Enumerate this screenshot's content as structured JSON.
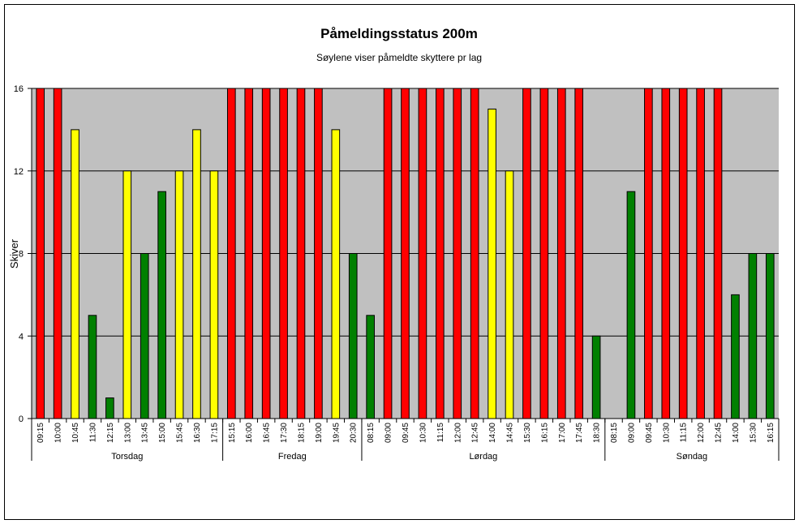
{
  "chart_data": {
    "type": "bar",
    "title": "Påmeldingsstatus 200m",
    "subtitle": "Søylene viser påmeldte skyttere pr lag",
    "ylabel": "Skiver",
    "xlabel": "",
    "ylim": [
      0,
      16
    ],
    "yticks": [
      0,
      4,
      8,
      12,
      16
    ],
    "grid": true,
    "legend": "none",
    "colors": {
      "red": "#ff0000",
      "yellow": "#ffff00",
      "green": "#008000",
      "plot_background": "#c0c0c0"
    },
    "groups": [
      {
        "day": "Torsdag",
        "categories": [
          "09:15",
          "10:00",
          "10:45",
          "11:30",
          "12:15",
          "13:00",
          "13:45",
          "15:00",
          "15:45",
          "16:30",
          "17:15"
        ],
        "values": [
          16,
          16,
          14,
          5,
          1,
          12,
          8,
          11,
          12,
          14,
          12
        ],
        "colors": [
          "red",
          "red",
          "yellow",
          "green",
          "green",
          "yellow",
          "green",
          "green",
          "yellow",
          "yellow",
          "yellow"
        ]
      },
      {
        "day": "Fredag",
        "categories": [
          "15:15",
          "16:00",
          "16:45",
          "17:30",
          "18:15",
          "19:00",
          "19:45",
          "20:30"
        ],
        "values": [
          16,
          16,
          16,
          16,
          16,
          16,
          14,
          8
        ],
        "colors": [
          "red",
          "red",
          "red",
          "red",
          "red",
          "red",
          "yellow",
          "green"
        ]
      },
      {
        "day": "Lørdag",
        "categories": [
          "08:15",
          "09:00",
          "09:45",
          "10:30",
          "11:15",
          "12:00",
          "12:45",
          "14:00",
          "14:45",
          "15:30",
          "16:15",
          "17:00",
          "17:45",
          "18:30"
        ],
        "values": [
          5,
          16,
          16,
          16,
          16,
          16,
          16,
          15,
          12,
          16,
          16,
          16,
          16,
          4
        ],
        "colors": [
          "green",
          "red",
          "red",
          "red",
          "red",
          "red",
          "red",
          "yellow",
          "yellow",
          "red",
          "red",
          "red",
          "red",
          "green"
        ]
      },
      {
        "day": "Søndag",
        "categories": [
          "08:15",
          "09:00",
          "09:45",
          "10:30",
          "11:15",
          "12:00",
          "12:45",
          "14:00",
          "15:30",
          "16:15"
        ],
        "values": [
          0,
          11,
          16,
          16,
          16,
          16,
          16,
          6,
          8,
          8
        ],
        "colors": [
          "green",
          "green",
          "red",
          "red",
          "red",
          "red",
          "red",
          "green",
          "green",
          "green"
        ]
      }
    ]
  }
}
